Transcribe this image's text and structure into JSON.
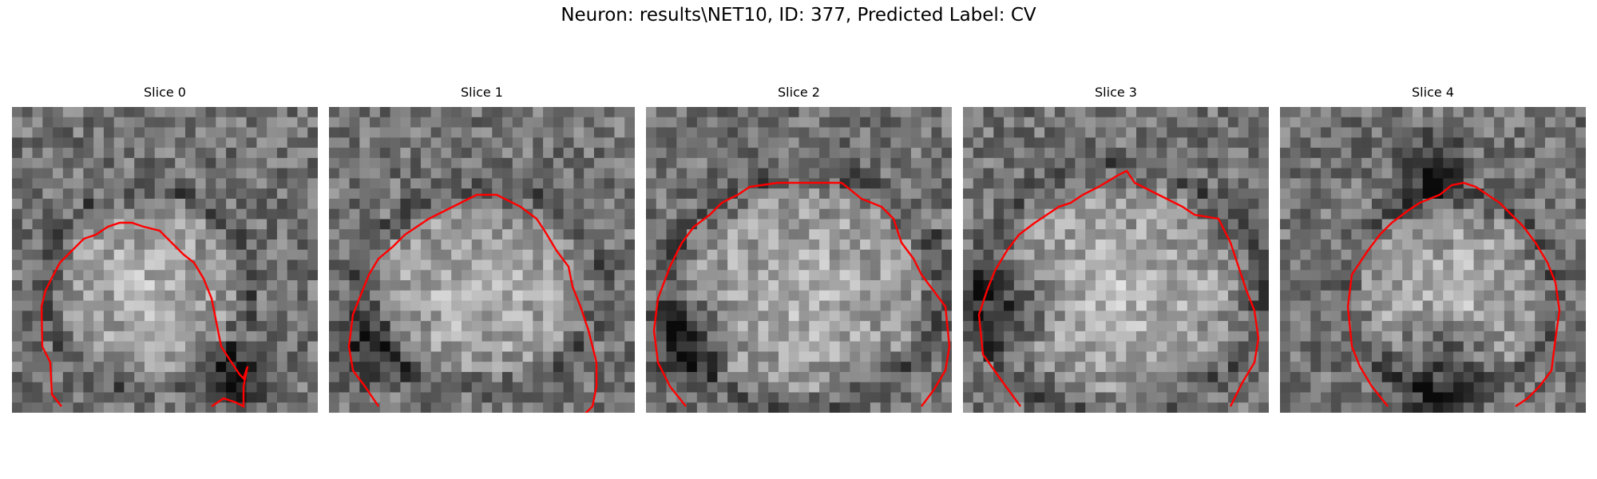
{
  "figure": {
    "title": "Neuron: results\\NET10, ID: 377, Predicted Label: CV"
  },
  "panels": [
    {
      "title": "Slice 0"
    },
    {
      "title": "Slice 1"
    },
    {
      "title": "Slice 2"
    },
    {
      "title": "Slice 3"
    },
    {
      "title": "Slice 4"
    }
  ],
  "style": {
    "contour_color": "#ff0000",
    "colormap": "grayscale"
  }
}
